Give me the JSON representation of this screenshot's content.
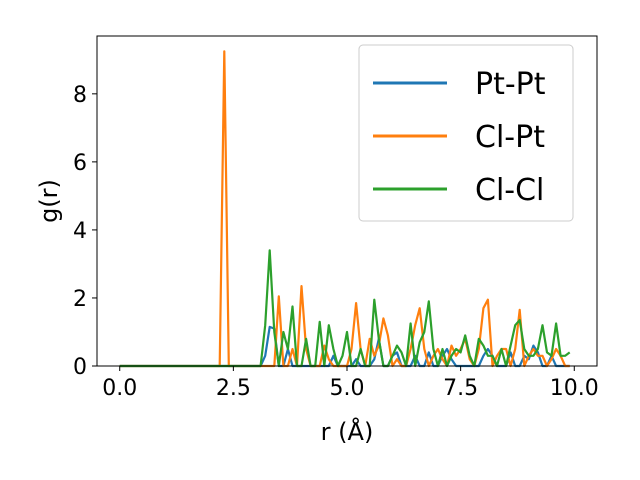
{
  "chart_data": {
    "type": "line",
    "title": "",
    "xlabel": "r (Å)",
    "ylabel": "g(r)",
    "xlim": [
      -0.5,
      10.5
    ],
    "ylim": [
      0,
      9.7
    ],
    "xticks": [
      0.0,
      2.5,
      5.0,
      7.5,
      10.0
    ],
    "xtick_labels": [
      "0.0",
      "2.5",
      "5.0",
      "7.5",
      "10.0"
    ],
    "yticks": [
      0,
      2,
      4,
      6,
      8
    ],
    "ytick_labels": [
      "0",
      "2",
      "4",
      "6",
      "8"
    ],
    "grid": false,
    "legend_position": "top-right",
    "series": [
      {
        "name": "Pt-Pt",
        "color": "#1f77b4",
        "x": [
          0,
          3.1,
          3.2,
          3.3,
          3.4,
          3.5,
          3.6,
          3.7,
          3.8,
          3.9,
          4.0,
          4.1,
          4.2,
          4.3,
          4.4,
          4.5,
          4.6,
          4.7,
          4.8,
          4.9,
          5.0,
          5.1,
          5.2,
          5.3,
          5.4,
          5.5,
          5.6,
          5.7,
          5.8,
          5.9,
          6.0,
          6.1,
          6.2,
          6.3,
          6.4,
          6.5,
          6.6,
          6.7,
          6.8,
          6.9,
          7.0,
          7.1,
          7.2,
          7.3,
          7.4,
          7.5,
          7.6,
          7.7,
          7.8,
          7.9,
          8.0,
          8.1,
          8.2,
          8.3,
          8.4,
          8.5,
          8.6,
          8.7,
          8.8,
          8.9,
          9.0,
          9.1,
          9.2,
          9.3,
          9.4,
          9.5,
          9.6,
          9.7,
          9.8,
          9.9
        ],
        "y": [
          0,
          0,
          0.3,
          1.15,
          1.1,
          0,
          0,
          0.5,
          0,
          0,
          0,
          0,
          0,
          0,
          0,
          0,
          0,
          0.3,
          0,
          0,
          0,
          0,
          0.2,
          0,
          0,
          0,
          0.2,
          0.8,
          0,
          0,
          0.3,
          0.4,
          0,
          0,
          0,
          0.3,
          0,
          0,
          0.4,
          0,
          0,
          0.3,
          0.5,
          0.2,
          0,
          0,
          0,
          0,
          0,
          0,
          0.3,
          0.5,
          0.3,
          0,
          0,
          0,
          0.4,
          0,
          0,
          0.3,
          0.2,
          0.6,
          0.4,
          0,
          0,
          0.3,
          0,
          0,
          0,
          0
        ]
      },
      {
        "name": "Cl-Pt",
        "color": "#ff7f0e",
        "x": [
          0,
          2.2,
          2.3,
          2.4,
          2.5,
          3.0,
          3.1,
          3.2,
          3.3,
          3.4,
          3.5,
          3.6,
          3.7,
          3.8,
          3.9,
          4.0,
          4.1,
          4.2,
          4.3,
          4.4,
          4.5,
          4.6,
          4.7,
          4.8,
          4.9,
          5.0,
          5.1,
          5.2,
          5.3,
          5.4,
          5.5,
          5.6,
          5.7,
          5.8,
          5.9,
          6.0,
          6.1,
          6.2,
          6.3,
          6.4,
          6.5,
          6.6,
          6.7,
          6.8,
          6.9,
          7.0,
          7.1,
          7.2,
          7.3,
          7.4,
          7.5,
          7.6,
          7.7,
          7.8,
          7.9,
          8.0,
          8.1,
          8.2,
          8.3,
          8.4,
          8.5,
          8.6,
          8.7,
          8.8,
          8.9,
          9.0,
          9.1,
          9.2,
          9.3,
          9.4,
          9.5,
          9.6,
          9.7,
          9.8,
          9.9
        ],
        "y": [
          0,
          0,
          9.25,
          0,
          0,
          0,
          0,
          0,
          0,
          0,
          2.05,
          0,
          0,
          0.5,
          0,
          2.35,
          0.5,
          0,
          0,
          0,
          0.6,
          0.2,
          0,
          0,
          0,
          0,
          0.5,
          1.85,
          0.5,
          0,
          0.8,
          0.3,
          0.6,
          1.4,
          0.9,
          0,
          0.2,
          0,
          0,
          0.5,
          1.2,
          1.7,
          0.5,
          0,
          0.3,
          0.5,
          0.2,
          0,
          0.6,
          0.3,
          0.5,
          0.8,
          0.2,
          0,
          0.5,
          1.7,
          1.95,
          0,
          0.3,
          0.5,
          0.5,
          0,
          0.5,
          1.65,
          0,
          0.3,
          0.5,
          0.3,
          0.3,
          0,
          0.2,
          0.5,
          0.3,
          0,
          0
        ]
      },
      {
        "name": "Cl-Cl",
        "color": "#2ca02c",
        "x": [
          0,
          3.1,
          3.2,
          3.3,
          3.4,
          3.5,
          3.6,
          3.7,
          3.8,
          3.9,
          4.0,
          4.1,
          4.2,
          4.3,
          4.4,
          4.5,
          4.6,
          4.7,
          4.8,
          4.9,
          5.0,
          5.1,
          5.2,
          5.3,
          5.4,
          5.5,
          5.6,
          5.7,
          5.8,
          5.9,
          6.0,
          6.1,
          6.2,
          6.3,
          6.4,
          6.5,
          6.6,
          6.7,
          6.8,
          6.9,
          7.0,
          7.1,
          7.2,
          7.3,
          7.4,
          7.5,
          7.6,
          7.7,
          7.8,
          7.9,
          8.0,
          8.1,
          8.2,
          8.3,
          8.4,
          8.5,
          8.6,
          8.7,
          8.8,
          8.9,
          9.0,
          9.1,
          9.2,
          9.3,
          9.4,
          9.5,
          9.6,
          9.7,
          9.8,
          9.9
        ],
        "y": [
          0,
          0,
          1.2,
          3.4,
          1.0,
          0,
          1.0,
          0.5,
          1.75,
          0,
          0,
          0.8,
          0,
          0,
          1.3,
          0,
          1.2,
          0.5,
          0,
          0.3,
          1.0,
          0,
          0,
          0.5,
          0,
          0,
          1.95,
          0.8,
          0,
          0,
          0.3,
          0.6,
          0.4,
          0,
          1.25,
          0,
          0.7,
          1.0,
          1.9,
          0.5,
          0,
          0.5,
          0,
          0.3,
          0.5,
          0.4,
          0.9,
          0.3,
          0,
          0.8,
          0.6,
          0.3,
          0.3,
          0,
          0.5,
          0,
          0.6,
          1.2,
          1.35,
          0.5,
          0.3,
          0.3,
          0.5,
          1.2,
          0.4,
          0.3,
          1.25,
          0.3,
          0.3,
          0.4
        ]
      }
    ]
  }
}
